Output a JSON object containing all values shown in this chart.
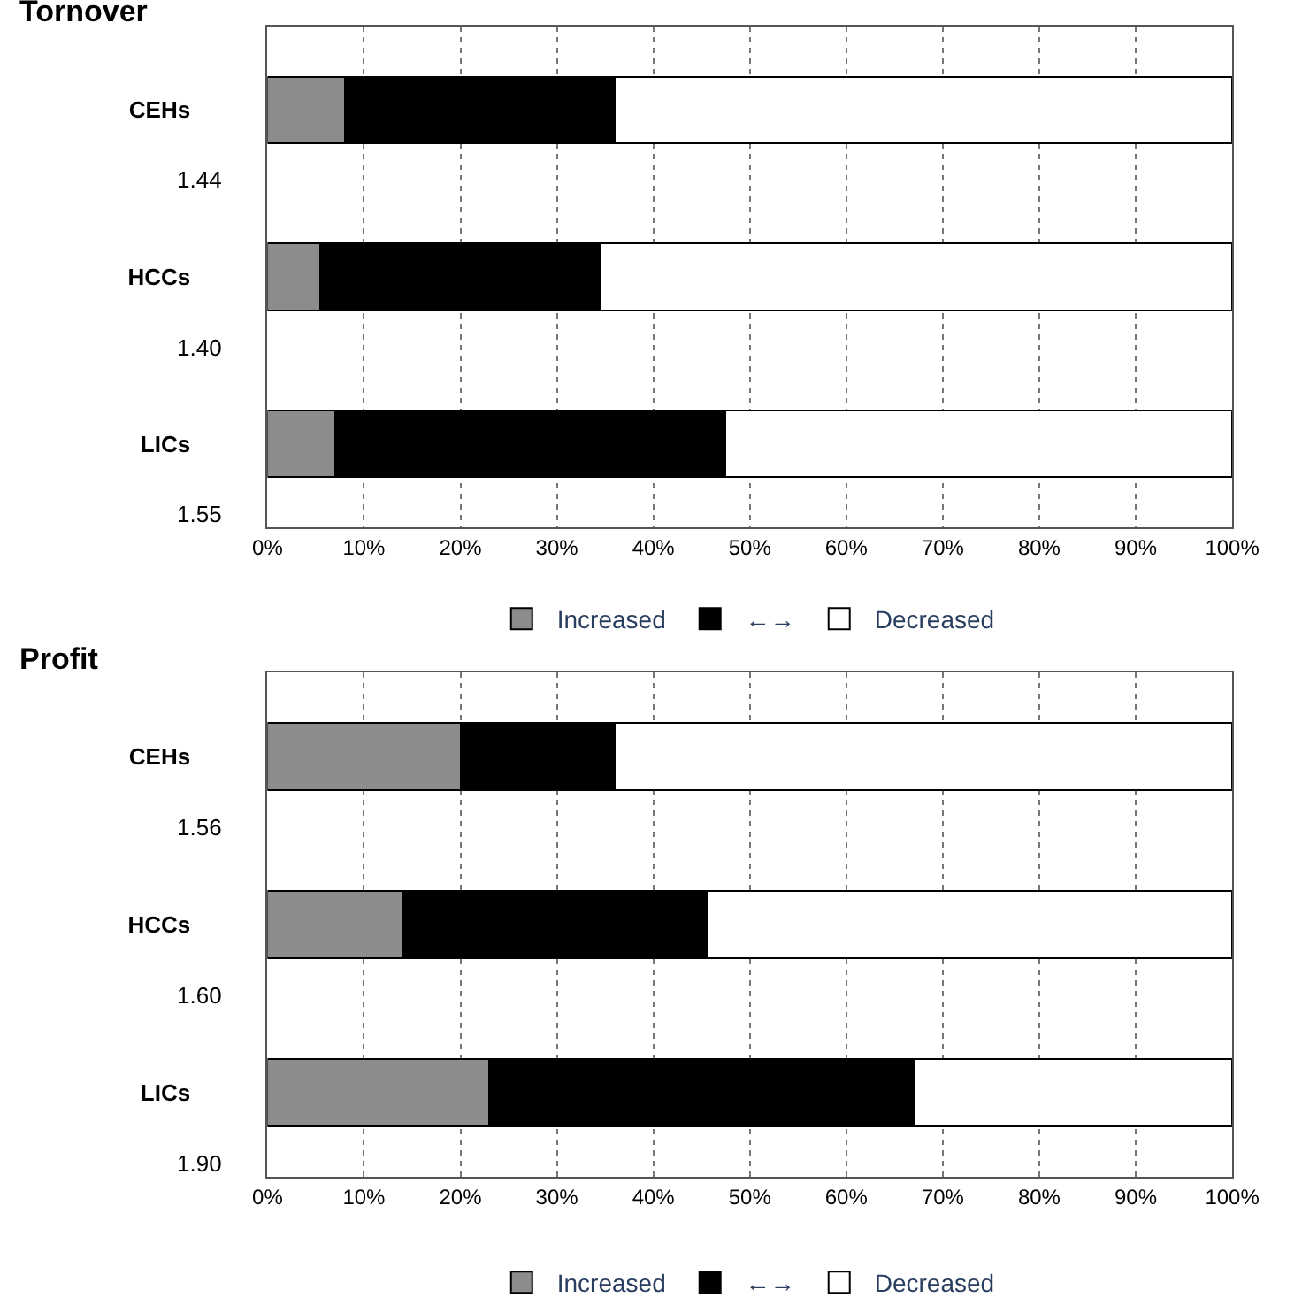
{
  "chart_data": [
    {
      "type": "bar",
      "orientation": "horizontal",
      "stacked": true,
      "title": "Tornover",
      "categories": [
        "CEHs",
        "HCCs",
        "LICs"
      ],
      "series": [
        {
          "name": "Increased",
          "color": "#8c8c8c",
          "values": [
            8,
            5.5,
            7
          ]
        },
        {
          "name": "←→",
          "color": "#000000",
          "values": [
            28,
            29,
            40.5
          ]
        },
        {
          "name": "Decreased",
          "color": "#ffffff",
          "values": [
            64,
            65.5,
            52.5
          ]
        }
      ],
      "annotations": [
        "1.44",
        "1.40",
        "1.55"
      ],
      "xlim": [
        0,
        100
      ],
      "xticks": [
        {
          "value": 0,
          "label": "0%"
        },
        {
          "value": 10,
          "label": "10%"
        },
        {
          "value": 20,
          "label": "20%"
        },
        {
          "value": 30,
          "label": "30%"
        },
        {
          "value": 40,
          "label": "40%"
        },
        {
          "value": 50,
          "label": "50%"
        },
        {
          "value": 60,
          "label": "60%"
        },
        {
          "value": 70,
          "label": "70%"
        },
        {
          "value": 80,
          "label": "80%"
        },
        {
          "value": 90,
          "label": "90%"
        },
        {
          "value": 100,
          "label": "100%"
        }
      ],
      "grid": "x",
      "legend": "bottom"
    },
    {
      "type": "bar",
      "orientation": "horizontal",
      "stacked": true,
      "title": "Profit",
      "categories": [
        "CEHs",
        "HCCs",
        "LICs"
      ],
      "series": [
        {
          "name": "Increased",
          "color": "#8c8c8c",
          "values": [
            20,
            14,
            23
          ]
        },
        {
          "name": "←→",
          "color": "#000000",
          "values": [
            16,
            31.5,
            44
          ]
        },
        {
          "name": "Decreased",
          "color": "#ffffff",
          "values": [
            64,
            54.5,
            33
          ]
        }
      ],
      "annotations": [
        "1.56",
        "1.60",
        "1.90"
      ],
      "xlim": [
        0,
        100
      ],
      "xticks": [
        {
          "value": 0,
          "label": "0%"
        },
        {
          "value": 10,
          "label": "10%"
        },
        {
          "value": 20,
          "label": "20%"
        },
        {
          "value": 30,
          "label": "30%"
        },
        {
          "value": 40,
          "label": "40%"
        },
        {
          "value": 50,
          "label": "50%"
        },
        {
          "value": 60,
          "label": "60%"
        },
        {
          "value": 70,
          "label": "70%"
        },
        {
          "value": 80,
          "label": "80%"
        },
        {
          "value": 90,
          "label": "90%"
        },
        {
          "value": 100,
          "label": "100%"
        }
      ],
      "grid": "x",
      "legend": "bottom"
    }
  ]
}
